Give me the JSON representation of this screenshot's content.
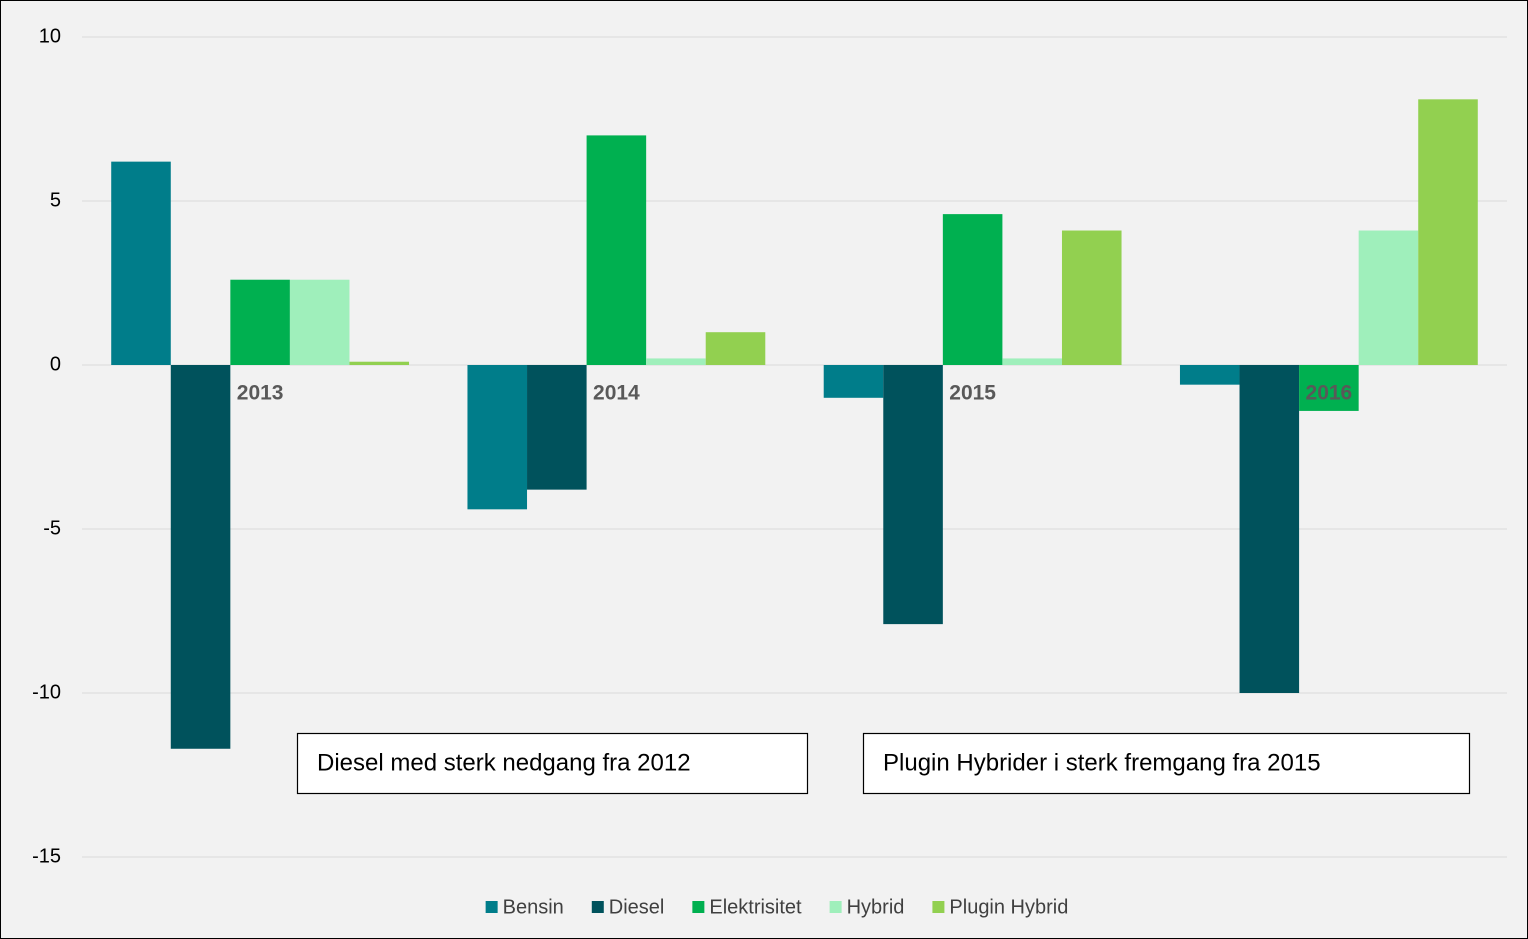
{
  "chart_data": {
    "type": "bar",
    "categories": [
      "2013",
      "2014",
      "2015",
      "2016"
    ],
    "series": [
      {
        "name": "Bensin",
        "color": "#007d8a",
        "values": [
          6.2,
          -4.4,
          -1.0,
          -0.6
        ]
      },
      {
        "name": "Diesel",
        "color": "#00525c",
        "values": [
          -11.7,
          -3.8,
          -7.9,
          -10.0
        ]
      },
      {
        "name": "Elektrisitet",
        "color": "#00b050",
        "values": [
          2.6,
          7.0,
          4.6,
          -1.4
        ]
      },
      {
        "name": "Hybrid",
        "color": "#9fefbb",
        "values": [
          2.6,
          0.2,
          0.2,
          4.1
        ]
      },
      {
        "name": "Plugin Hybrid",
        "color": "#92d050",
        "values": [
          0.1,
          1.0,
          4.1,
          8.1
        ]
      }
    ],
    "ylim": [
      -15,
      10
    ],
    "yticks": [
      -15,
      -10,
      -5,
      0,
      5,
      10
    ],
    "grid": true,
    "legend": "bottom",
    "annotations": [
      {
        "text": "Diesel med sterk nedgang fra 2012"
      },
      {
        "text": "Plugin Hybrider i sterk fremgang fra 2015"
      }
    ]
  }
}
